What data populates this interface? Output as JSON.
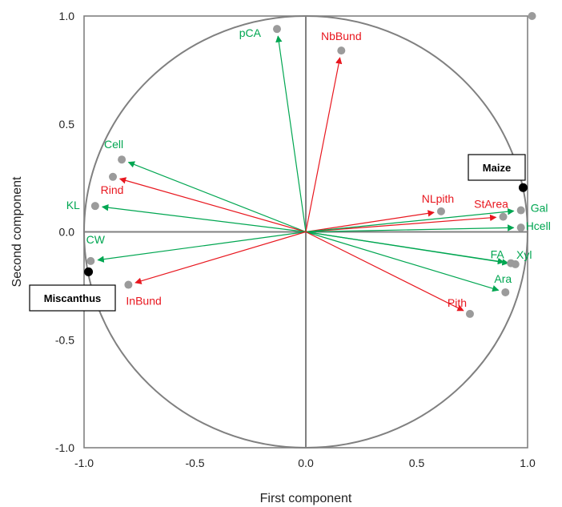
{
  "chart_data": {
    "type": "scatter",
    "xlabel": "First component",
    "ylabel": "Second component",
    "xlim": [
      -1.0,
      1.0
    ],
    "ylim": [
      -1.0,
      1.0
    ],
    "x_ticks": [
      "-1.0",
      "-0.5",
      "0.0",
      "0.5",
      "1.0"
    ],
    "y_ticks": [
      "-1.0",
      "-0.5",
      "0.0",
      "0.5",
      "1.0"
    ],
    "grid": false,
    "unit_circle": true,
    "colors": {
      "green": "#00a651",
      "red": "#e8171f",
      "point": "#9b9b9b",
      "sample": "#000000",
      "axis": "#808080"
    },
    "variables": [
      {
        "name": "pCA",
        "x": -0.13,
        "y": 0.94,
        "color": "green"
      },
      {
        "name": "NbBund",
        "x": 0.16,
        "y": 0.84,
        "color": "red"
      },
      {
        "name": "Cell",
        "x": -0.83,
        "y": 0.335,
        "color": "green"
      },
      {
        "name": "Rind",
        "x": -0.87,
        "y": 0.255,
        "color": "red"
      },
      {
        "name": "KL",
        "x": -0.95,
        "y": 0.12,
        "color": "green"
      },
      {
        "name": "CW",
        "x": -0.97,
        "y": -0.135,
        "color": "green"
      },
      {
        "name": "InBund",
        "x": -0.8,
        "y": -0.245,
        "color": "red"
      },
      {
        "name": "NLpith",
        "x": 0.61,
        "y": 0.095,
        "color": "red"
      },
      {
        "name": "StArea",
        "x": 0.89,
        "y": 0.07,
        "color": "red"
      },
      {
        "name": "Gal",
        "x": 0.97,
        "y": 0.1,
        "color": "green"
      },
      {
        "name": "Hcell",
        "x": 0.97,
        "y": 0.02,
        "color": "green"
      },
      {
        "name": "FA",
        "x": 0.925,
        "y": -0.145,
        "color": "green"
      },
      {
        "name": "Xyl",
        "x": 0.945,
        "y": -0.15,
        "color": "green"
      },
      {
        "name": "Ara",
        "x": 0.9,
        "y": -0.28,
        "color": "green"
      },
      {
        "name": "Pith",
        "x": 0.74,
        "y": -0.38,
        "color": "red"
      }
    ],
    "extra_points": [
      {
        "x": 1.02,
        "y": 1.0
      }
    ],
    "samples": [
      {
        "name": "Maize",
        "x": 0.98,
        "y": 0.205
      },
      {
        "name": "Miscanthus",
        "x": -0.98,
        "y": -0.185
      }
    ]
  }
}
